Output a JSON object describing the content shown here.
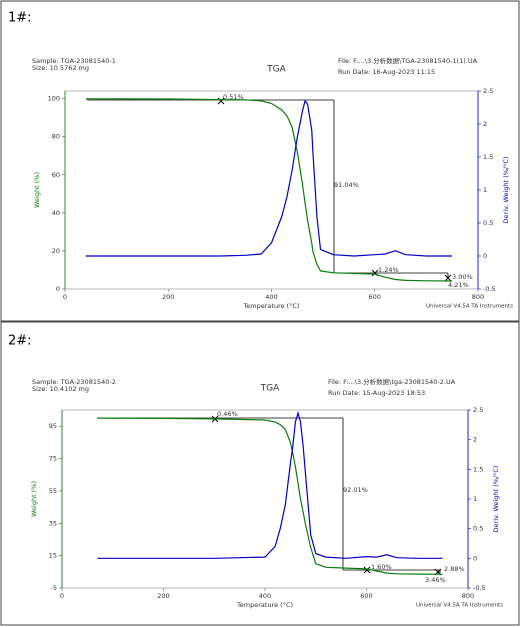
{
  "panel_labels": [
    "1#:",
    "2#:"
  ],
  "chart_data": [
    {
      "type": "line",
      "title": "TGA",
      "sample": "Sample: TGA-23081540-1",
      "size": "Size: 10.5762 mg",
      "file": "File: F:...\\3.分析数据\\TGA-23081540-1(1).UA",
      "run_date": "Run Date: 16-Aug-2023 11:15",
      "footer": "Universal V4.5A TA Instruments",
      "x_label": "Temperature (°C)",
      "y_label": "Weight (%)",
      "y2_label": "Deriv. Weight (%/°C)",
      "annotations": [
        "0.51%",
        "91.04%",
        "1.24%",
        "3.00%",
        "4.21%"
      ],
      "xlim": [
        0,
        800
      ],
      "xticks": [
        0,
        200,
        400,
        600,
        800
      ],
      "ylim": [
        0,
        104
      ],
      "yticks": [
        0,
        20,
        40,
        60,
        80,
        100
      ],
      "y2lim": [
        -0.5,
        2.5
      ],
      "y2ticks": [
        -0.5,
        0.0,
        0.5,
        1.0,
        1.5,
        2.0,
        2.5
      ],
      "x": [
        40,
        200,
        300,
        350,
        380,
        400,
        420,
        430,
        440,
        450,
        460,
        465,
        470,
        478,
        480,
        488,
        495,
        520,
        560,
        600,
        620,
        640,
        660,
        700,
        750
      ],
      "series": [
        {
          "color": "#0a7d0a",
          "values": [
            99.9,
            99.8,
            99.5,
            99.3,
            98.8,
            97.5,
            94,
            91,
            85,
            72,
            55,
            45,
            36,
            24,
            20,
            13,
            9.5,
            8.5,
            8.2,
            7.8,
            6.2,
            5,
            4.5,
            4.3,
            4.2
          ]
        },
        {
          "color": "#0000c8",
          "axis": "y2",
          "values": [
            0,
            0,
            0,
            0.01,
            0.03,
            0.2,
            0.6,
            0.9,
            1.3,
            1.8,
            2.2,
            2.35,
            2.3,
            1.9,
            1.6,
            0.6,
            0.1,
            0.02,
            0,
            0.02,
            0.03,
            0.08,
            0.02,
            0,
            0
          ]
        }
      ]
    },
    {
      "type": "line",
      "title": "TGA",
      "sample": "Sample: TGA-23081540-2",
      "size": "Size: 10.4102 mg",
      "file": "File: F:...\\3.分析数据\\tga-23081540-2.UA",
      "run_date": "Run Date: 15-Aug-2023 18:53",
      "footer": "Universal V4.5A TA Instruments",
      "x_label": "Temperature (°C)",
      "y_label": "Weight (%)",
      "y2_label": "Deriv. Weight (%/°C)",
      "annotations": [
        "0.46%",
        "92.01%",
        "1.60%",
        "2.88%",
        "3.46%"
      ],
      "xlim": [
        0,
        800
      ],
      "xticks": [
        0,
        200,
        400,
        600,
        800
      ],
      "ylim": [
        -5,
        105
      ],
      "yticks": [
        -5,
        15,
        35,
        55,
        75,
        95
      ],
      "y2lim": [
        -0.5,
        2.5
      ],
      "y2ticks": [
        -0.5,
        0.0,
        0.5,
        1.0,
        1.5,
        2.0,
        2.5
      ],
      "x": [
        70,
        200,
        300,
        400,
        420,
        430,
        440,
        450,
        455,
        460,
        465,
        470,
        475,
        480,
        490,
        500,
        520,
        560,
        600,
        620,
        640,
        660,
        700,
        750
      ],
      "series": [
        {
          "color": "#0a7d0a",
          "values": [
            100,
            99.8,
            99.5,
            98.8,
            97.5,
            96,
            93,
            85,
            78,
            70,
            60,
            50,
            42,
            34,
            20,
            10,
            7.8,
            7.3,
            6.8,
            5.5,
            4.2,
            3.8,
            3.6,
            3.5
          ]
        },
        {
          "color": "#0000c8",
          "axis": "y2",
          "values": [
            0,
            0,
            0,
            0.02,
            0.2,
            0.5,
            0.9,
            1.6,
            1.9,
            2.3,
            2.45,
            2.3,
            1.9,
            1.4,
            0.4,
            0.08,
            0.02,
            0,
            0.03,
            0.02,
            0.06,
            0.01,
            0,
            0
          ]
        }
      ]
    }
  ]
}
